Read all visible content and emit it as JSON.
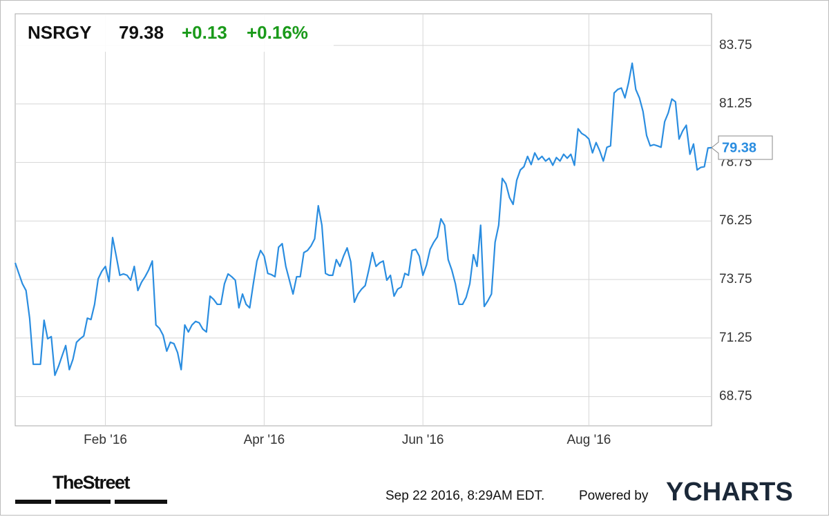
{
  "chart_data": {
    "type": "line",
    "title": "NSRGY",
    "header": {
      "price": "79.38",
      "change": "+0.13",
      "change_percent": "+0.16%"
    },
    "footer": {
      "source": "TheStreet",
      "timestamp": "Sep 22 2016, 8:29AM EDT.",
      "powered_by": "Powered by",
      "brand": "YCHARTS"
    },
    "color": "#2a8de0",
    "grid": true,
    "ylim": [
      67.5,
      85.1
    ],
    "yticks": [
      68.75,
      71.25,
      73.75,
      76.25,
      78.75,
      81.25,
      83.75
    ],
    "categories": [
      null,
      null,
      null,
      null,
      null,
      null,
      null,
      null,
      null,
      null,
      null,
      null,
      null,
      null,
      null,
      null,
      null,
      null,
      null,
      null,
      null,
      null,
      null,
      null,
      null,
      "Feb '16",
      null,
      null,
      null,
      null,
      null,
      null,
      null,
      null,
      null,
      null,
      null,
      null,
      null,
      null,
      null,
      null,
      null,
      null,
      null,
      null,
      null,
      null,
      null,
      null,
      null,
      null,
      null,
      null,
      null,
      null,
      null,
      null,
      null,
      null,
      null,
      null,
      null,
      null,
      null,
      null,
      null,
      null,
      null,
      "Apr '16",
      null,
      null,
      null,
      null,
      null,
      null,
      null,
      null,
      null,
      null,
      null,
      null,
      null,
      null,
      null,
      null,
      null,
      null,
      null,
      null,
      null,
      null,
      null,
      null,
      null,
      null,
      null,
      null,
      null,
      null,
      null,
      null,
      null,
      null,
      null,
      null,
      null,
      null,
      null,
      null,
      null,
      null,
      null,
      "Jun '16",
      null,
      null,
      null,
      null,
      null,
      null,
      null,
      null,
      null,
      null,
      null,
      null,
      null,
      null,
      null,
      null,
      null,
      null,
      null,
      null,
      null,
      null,
      null,
      null,
      null,
      null,
      null,
      null,
      null,
      null,
      null,
      null,
      null,
      null,
      null,
      null,
      null,
      null,
      null,
      null,
      null,
      null,
      null,
      null,
      null,
      "Aug '16",
      null,
      null,
      null,
      null,
      null,
      null,
      null,
      null,
      null,
      null,
      null,
      null,
      null,
      null,
      null,
      null,
      null,
      null,
      null,
      null,
      null,
      null,
      null,
      null,
      null,
      null,
      null,
      null,
      null,
      null,
      null,
      null,
      null,
      null
    ],
    "values": [
      74.46,
      74.01,
      73.57,
      73.28,
      72.1,
      70.13,
      70.13,
      70.13,
      72.01,
      71.22,
      71.31,
      69.66,
      70.04,
      70.49,
      70.93,
      69.9,
      70.34,
      71.07,
      71.22,
      71.34,
      72.1,
      72.04,
      72.69,
      73.78,
      74.1,
      74.31,
      73.66,
      75.54,
      74.75,
      73.93,
      73.99,
      73.93,
      73.72,
      74.31,
      73.28,
      73.63,
      73.87,
      74.16,
      74.54,
      71.81,
      71.66,
      71.37,
      70.69,
      71.07,
      71.01,
      70.63,
      69.9,
      71.81,
      71.51,
      71.81,
      71.96,
      71.9,
      71.63,
      71.51,
      73.04,
      72.9,
      72.69,
      72.69,
      73.57,
      73.99,
      73.87,
      73.72,
      72.54,
      73.13,
      72.69,
      72.54,
      73.57,
      74.54,
      74.99,
      74.75,
      74.01,
      73.96,
      73.87,
      75.13,
      75.28,
      74.31,
      73.72,
      73.13,
      73.87,
      73.87,
      74.9,
      74.99,
      75.19,
      75.49,
      76.9,
      76.07,
      74.01,
      73.93,
      73.93,
      74.6,
      74.31,
      74.75,
      75.1,
      74.51,
      72.78,
      73.13,
      73.34,
      73.49,
      74.16,
      74.9,
      74.31,
      74.46,
      74.54,
      73.72,
      73.93,
      73.04,
      73.34,
      73.43,
      74.01,
      73.93,
      74.99,
      75.04,
      74.75,
      73.93,
      74.37,
      75.04,
      75.34,
      75.57,
      76.34,
      76.07,
      74.6,
      74.16,
      73.57,
      72.69,
      72.69,
      72.99,
      73.57,
      74.81,
      74.31,
      76.07,
      72.6,
      72.84,
      73.13,
      75.34,
      76.07,
      78.07,
      77.84,
      77.25,
      76.96,
      77.99,
      78.43,
      78.57,
      79.01,
      78.66,
      79.16,
      78.87,
      79.01,
      78.81,
      78.93,
      78.63,
      78.96,
      78.81,
      79.1,
      78.93,
      79.1,
      78.63,
      80.19,
      79.99,
      79.9,
      79.75,
      79.16,
      79.6,
      79.25,
      78.81,
      79.4,
      79.46,
      81.72,
      81.87,
      81.93,
      81.51,
      82.16,
      82.99,
      81.87,
      81.51,
      80.93,
      79.9,
      79.46,
      79.51,
      79.46,
      79.4,
      80.49,
      80.87,
      81.46,
      81.34,
      79.75,
      80.1,
      80.34,
      79.1,
      79.54,
      78.43,
      78.54,
      78.57,
      79.37,
      79.38
    ]
  }
}
